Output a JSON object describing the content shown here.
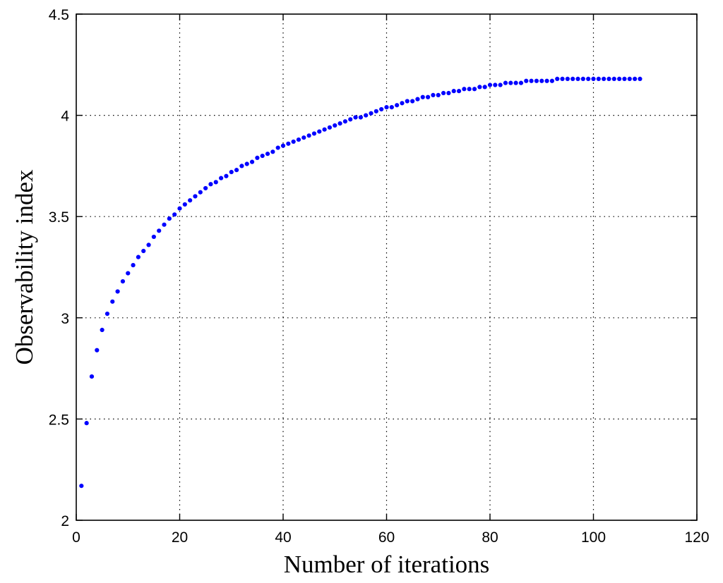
{
  "chart_data": {
    "type": "scatter",
    "title": "",
    "xlabel": "Number of iterations",
    "ylabel": "Observability index",
    "xlim": [
      0,
      120
    ],
    "ylim": [
      2,
      4.5
    ],
    "x_ticks": [
      "0",
      "20",
      "40",
      "60",
      "80",
      "100",
      "120"
    ],
    "y_ticks": [
      "2",
      "2.5",
      "3",
      "3.5",
      "4",
      "4.5"
    ],
    "grid": true,
    "marker_color": "#0000ff",
    "series": [
      {
        "x": [
          1,
          2,
          3,
          4,
          5,
          6,
          7,
          8,
          9,
          10,
          11,
          12,
          13,
          14,
          15,
          16,
          17,
          18,
          19,
          20,
          21,
          22,
          23,
          24,
          25,
          26,
          27,
          28,
          29,
          30,
          31,
          32,
          33,
          34,
          35,
          36,
          37,
          38,
          39,
          40,
          41,
          42,
          43,
          44,
          45,
          46,
          47,
          48,
          49,
          50,
          51,
          52,
          53,
          54,
          55,
          56,
          57,
          58,
          59,
          60,
          61,
          62,
          63,
          64,
          65,
          66,
          67,
          68,
          69,
          70,
          71,
          72,
          73,
          74,
          75,
          76,
          77,
          78,
          79,
          80,
          81,
          82,
          83,
          84,
          85,
          86,
          87,
          88,
          89,
          90,
          91,
          92,
          93,
          94,
          95,
          96,
          97,
          98,
          99,
          100,
          101,
          102,
          103,
          104,
          105,
          106,
          107,
          108,
          109
        ],
        "y": [
          2.17,
          2.48,
          2.71,
          2.84,
          2.94,
          3.02,
          3.08,
          3.13,
          3.18,
          3.22,
          3.26,
          3.3,
          3.33,
          3.36,
          3.4,
          3.43,
          3.46,
          3.49,
          3.51,
          3.54,
          3.56,
          3.58,
          3.6,
          3.62,
          3.64,
          3.66,
          3.67,
          3.69,
          3.7,
          3.72,
          3.73,
          3.75,
          3.76,
          3.77,
          3.79,
          3.8,
          3.81,
          3.82,
          3.84,
          3.85,
          3.86,
          3.87,
          3.88,
          3.89,
          3.9,
          3.91,
          3.92,
          3.93,
          3.94,
          3.95,
          3.96,
          3.97,
          3.98,
          3.99,
          3.99,
          4.0,
          4.01,
          4.02,
          4.03,
          4.04,
          4.04,
          4.05,
          4.06,
          4.07,
          4.07,
          4.08,
          4.09,
          4.09,
          4.1,
          4.1,
          4.11,
          4.11,
          4.12,
          4.12,
          4.13,
          4.13,
          4.13,
          4.14,
          4.14,
          4.15,
          4.15,
          4.15,
          4.16,
          4.16,
          4.16,
          4.16,
          4.17,
          4.17,
          4.17,
          4.17,
          4.17,
          4.17,
          4.18,
          4.18,
          4.18,
          4.18,
          4.18,
          4.18,
          4.18,
          4.18,
          4.18,
          4.18,
          4.18,
          4.18,
          4.18,
          4.18,
          4.18,
          4.18,
          4.18
        ]
      }
    ]
  }
}
